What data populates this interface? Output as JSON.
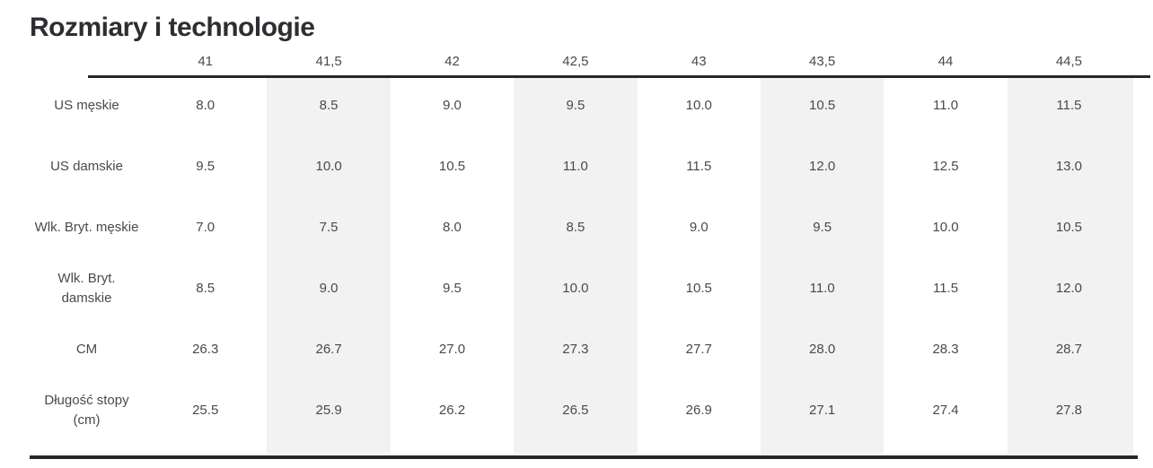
{
  "page": {
    "title": "Rozmiary i technologie"
  },
  "table": {
    "columns": [
      "41",
      "41,5",
      "42",
      "42,5",
      "43",
      "43,5",
      "44",
      "44,5"
    ],
    "shaded_columns": [
      1,
      3,
      5,
      7
    ],
    "rows": [
      {
        "label": "US męskie",
        "values": [
          "8.0",
          "8.5",
          "9.0",
          "9.5",
          "10.0",
          "10.5",
          "11.0",
          "11.5"
        ]
      },
      {
        "label": "US damskie",
        "values": [
          "9.5",
          "10.0",
          "10.5",
          "11.0",
          "11.5",
          "12.0",
          "12.5",
          "13.0"
        ]
      },
      {
        "label": "Wlk. Bryt. męskie",
        "values": [
          "7.0",
          "7.5",
          "8.0",
          "8.5",
          "9.0",
          "9.5",
          "10.0",
          "10.5"
        ]
      },
      {
        "label": "Wlk. Bryt.\ndamskie",
        "values": [
          "8.5",
          "9.0",
          "9.5",
          "10.0",
          "10.5",
          "11.0",
          "11.5",
          "12.0"
        ]
      },
      {
        "label": "CM",
        "values": [
          "26.3",
          "26.7",
          "27.0",
          "27.3",
          "27.7",
          "28.0",
          "28.3",
          "28.7"
        ]
      },
      {
        "label": "Długość stopy\n(cm)",
        "values": [
          "25.5",
          "25.9",
          "26.2",
          "26.5",
          "26.9",
          "27.1",
          "27.4",
          "27.8"
        ]
      }
    ]
  },
  "chart_data": {
    "type": "table",
    "title": "Rozmiary i technologie",
    "categories": [
      "41",
      "41,5",
      "42",
      "42,5",
      "43",
      "43,5",
      "44",
      "44,5"
    ],
    "series": [
      {
        "name": "US męskie",
        "values": [
          8.0,
          8.5,
          9.0,
          9.5,
          10.0,
          10.5,
          11.0,
          11.5
        ]
      },
      {
        "name": "US damskie",
        "values": [
          9.5,
          10.0,
          10.5,
          11.0,
          11.5,
          12.0,
          12.5,
          13.0
        ]
      },
      {
        "name": "Wlk. Bryt. męskie",
        "values": [
          7.0,
          7.5,
          8.0,
          8.5,
          9.0,
          9.5,
          10.0,
          10.5
        ]
      },
      {
        "name": "Wlk. Bryt. damskie",
        "values": [
          8.5,
          9.0,
          9.5,
          10.0,
          10.5,
          11.0,
          11.5,
          12.0
        ]
      },
      {
        "name": "CM",
        "values": [
          26.3,
          26.7,
          27.0,
          27.3,
          27.7,
          28.0,
          28.3,
          28.7
        ]
      },
      {
        "name": "Długość stopy (cm)",
        "values": [
          25.5,
          25.9,
          26.2,
          26.5,
          26.9,
          27.1,
          27.4,
          27.8
        ]
      }
    ]
  },
  "colors": {
    "band": "#f2f2f2",
    "rule": "#262626",
    "text": "#4a4a4a",
    "title": "#2d2d32",
    "bg": "#ffffff"
  }
}
